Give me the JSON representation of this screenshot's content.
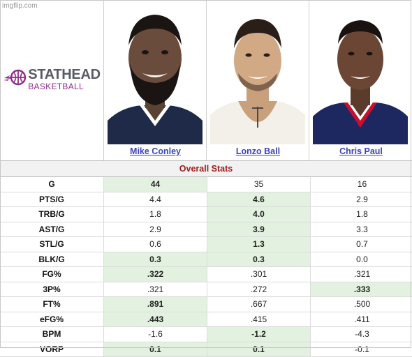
{
  "watermark": "imgflip.com",
  "logo": {
    "top_text": "STATHEAD",
    "bottom_text": "BASKETBALL",
    "accent_color": "#8f2e8a"
  },
  "players": [
    {
      "name": "Mike Conley",
      "jersey_color": "#1f2a48"
    },
    {
      "name": "Lonzo Ball",
      "jersey_color": "#f2f0e8"
    },
    {
      "name": "Chris Paul",
      "jersey_color": "#1d2860"
    }
  ],
  "section_title": "Overall Stats",
  "colors": {
    "best_highlight": "#e3f2e0",
    "title_text": "#a02020",
    "name_link": "#3a45b8"
  },
  "stats": [
    {
      "label": "G",
      "values": [
        "44",
        "35",
        "16"
      ],
      "best": [
        0
      ]
    },
    {
      "label": "PTS/G",
      "values": [
        "4.4",
        "4.6",
        "2.9"
      ],
      "best": [
        1
      ]
    },
    {
      "label": "TRB/G",
      "values": [
        "1.8",
        "4.0",
        "1.8"
      ],
      "best": [
        1
      ]
    },
    {
      "label": "AST/G",
      "values": [
        "2.9",
        "3.9",
        "3.3"
      ],
      "best": [
        1
      ]
    },
    {
      "label": "STL/G",
      "values": [
        "0.6",
        "1.3",
        "0.7"
      ],
      "best": [
        1
      ]
    },
    {
      "label": "BLK/G",
      "values": [
        "0.3",
        "0.3",
        "0.0"
      ],
      "best": [
        0,
        1
      ]
    },
    {
      "label": "FG%",
      "values": [
        ".322",
        ".301",
        ".321"
      ],
      "best": [
        0
      ]
    },
    {
      "label": "3P%",
      "values": [
        ".321",
        ".272",
        ".333"
      ],
      "best": [
        2
      ]
    },
    {
      "label": "FT%",
      "values": [
        ".891",
        ".667",
        ".500"
      ],
      "best": [
        0
      ]
    },
    {
      "label": "eFG%",
      "values": [
        ".443",
        ".415",
        ".411"
      ],
      "best": [
        0
      ]
    },
    {
      "label": "BPM",
      "values": [
        "-1.6",
        "-1.2",
        "-4.3"
      ],
      "best": [
        1
      ]
    },
    {
      "label": "VORP",
      "values": [
        "0.1",
        "0.1",
        "-0.1"
      ],
      "best": [
        0,
        1
      ]
    }
  ]
}
